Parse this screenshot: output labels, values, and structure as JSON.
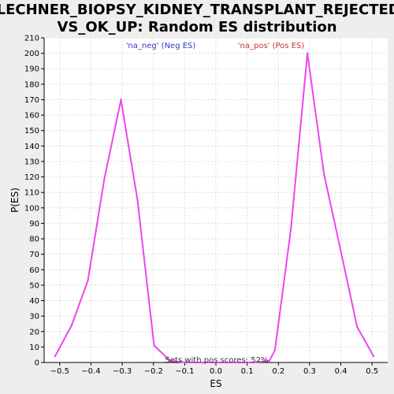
{
  "chart_data": {
    "type": "line",
    "title_line1": "FLECHNER_BIOPSY_KIDNEY_TRANSPLANT_REJECTED_",
    "title_line2": "VS_OK_UP: Random ES distribution",
    "xlabel": "ES",
    "ylabel": "P(ES)",
    "xlim": [
      -0.55,
      0.55
    ],
    "ylim": [
      0,
      210
    ],
    "xticks": [
      -0.5,
      -0.4,
      -0.3,
      -0.2,
      -0.1,
      0.0,
      0.1,
      0.2,
      0.3,
      0.4,
      0.5
    ],
    "xtick_labels": [
      "−0.5",
      "−0.4",
      "−0.3",
      "−0.2",
      "−0.1",
      "0.0",
      "0.1",
      "0.2",
      "0.3",
      "0.4",
      "0.5"
    ],
    "yticks": [
      0,
      10,
      20,
      30,
      40,
      50,
      60,
      70,
      80,
      90,
      100,
      110,
      120,
      130,
      140,
      150,
      160,
      170,
      180,
      190,
      200,
      210
    ],
    "grid": true,
    "legend": {
      "neg_label": "'na_neg' (Neg ES)",
      "pos_label": "'na_pos' (Pos ES)",
      "neg_color": "#3333cc",
      "pos_color": "#cc3333"
    },
    "annotation": "Sets with pos scores: 52%",
    "line_color": "#ee44ee",
    "series": [
      {
        "x": [
          -0.515,
          -0.462,
          -0.41,
          -0.357,
          -0.304,
          -0.251,
          -0.198,
          -0.146,
          -0.093,
          -0.04,
          0.013,
          0.066,
          0.118,
          0.171,
          0.189,
          0.24,
          0.293,
          0.346,
          0.399,
          0.452,
          0.505
        ],
        "y": [
          4,
          24,
          53,
          119,
          170,
          105,
          11,
          1,
          0,
          0,
          0,
          0,
          0,
          1,
          8,
          86,
          200,
          122,
          73,
          23,
          4
        ]
      }
    ]
  }
}
